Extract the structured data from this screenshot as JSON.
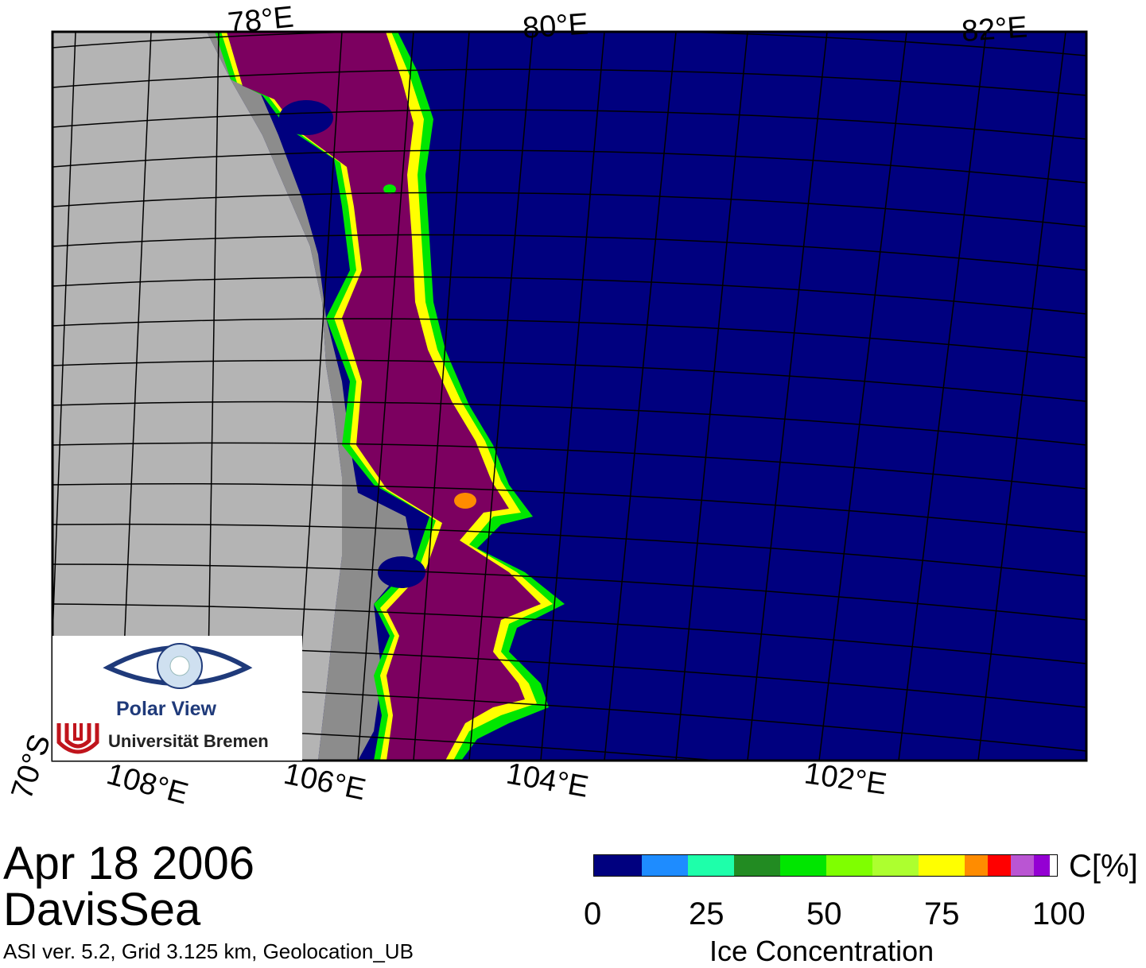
{
  "map": {
    "top_labels": [
      "78°E",
      "80°E",
      "82°E"
    ],
    "bottom_labels": [
      "108°E",
      "106°E",
      "104°E",
      "102°E"
    ],
    "left_label": "70°S",
    "colors": {
      "land": "#b4b4b4",
      "shelf": "#8c8c8c",
      "ocean": "#00007f",
      "high_ice": "#7c0060",
      "grid": "#000000"
    }
  },
  "logo": {
    "line1": "Polar View",
    "line2": "Universität Bremen",
    "eye_color": "#1f3a7a",
    "mark_color": "#c0141c"
  },
  "caption": {
    "date": "Apr 18 2006",
    "region": "DavisSea",
    "info": "ASI ver. 5.2,  Grid 3.125 km, Geolocation_UB"
  },
  "colorbar": {
    "title": "Ice Concentration",
    "unit": "C[%]",
    "ticks": [
      "0",
      "25",
      "50",
      "75",
      "100"
    ],
    "colors": [
      "#00007f",
      "#1e8cff",
      "#1effaa",
      "#228b22",
      "#00e600",
      "#7fff00",
      "#adff2f",
      "#ffff00",
      "#ff8c00",
      "#ff0000",
      "#ba55d3",
      "#9400d3",
      "#ffffff"
    ]
  }
}
